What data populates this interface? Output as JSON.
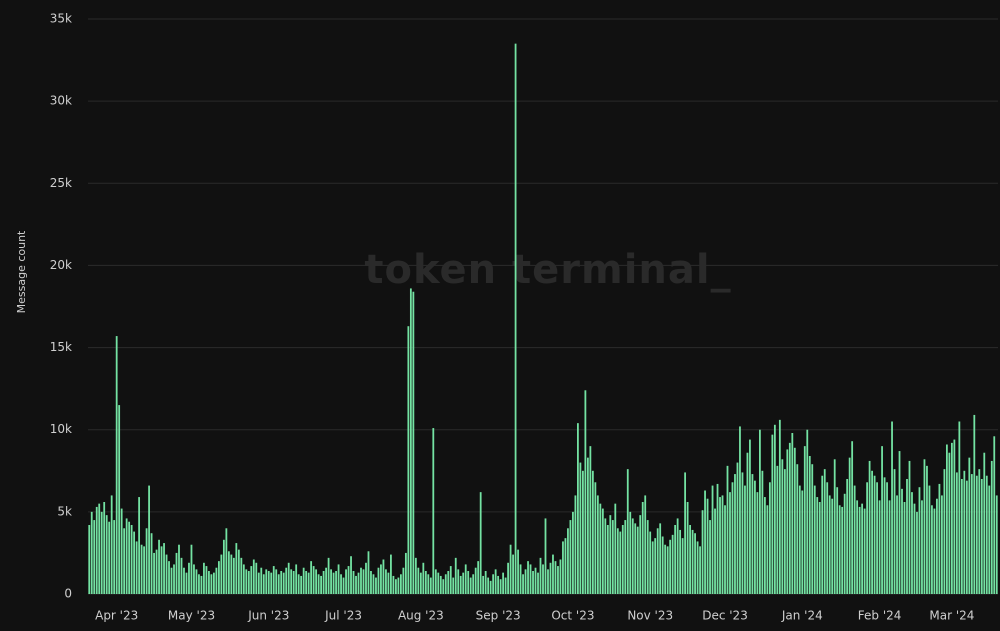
{
  "chart_data": {
    "type": "bar",
    "y_label": "Message count",
    "watermark": "token terminal_",
    "color": "#74e3a3",
    "grid": true,
    "ylim": [
      0,
      35000
    ],
    "yticks": [
      0,
      {
        "value": 5000,
        "label": "5k"
      },
      {
        "value": 10000,
        "label": "10k"
      },
      {
        "value": 15000,
        "label": "15k"
      },
      {
        "value": 20000,
        "label": "20k"
      },
      {
        "value": 25000,
        "label": "25k"
      },
      {
        "value": 30000,
        "label": "30k"
      },
      {
        "value": 35000,
        "label": "35k"
      }
    ],
    "categories": [
      null,
      null,
      null,
      null,
      null,
      null,
      null,
      "Apr '23",
      null,
      null,
      null,
      null,
      null,
      null,
      null,
      null,
      null,
      null,
      null,
      null,
      null,
      null,
      null,
      null,
      null,
      null,
      null,
      null,
      null,
      null,
      null,
      null,
      null,
      null,
      null,
      null,
      null,
      "May '23",
      null,
      null,
      null,
      null,
      null,
      null,
      null,
      null,
      null,
      null,
      null,
      null,
      null,
      null,
      null,
      null,
      null,
      null,
      null,
      null,
      null,
      null,
      null,
      null,
      null,
      null,
      null,
      null,
      null,
      null,
      "Jun '23",
      null,
      null,
      null,
      null,
      null,
      null,
      null,
      null,
      null,
      null,
      null,
      null,
      null,
      null,
      null,
      null,
      null,
      null,
      null,
      null,
      null,
      null,
      null,
      null,
      null,
      null,
      null,
      null,
      null,
      "Jul '23",
      null,
      null,
      null,
      null,
      null,
      null,
      null,
      null,
      null,
      null,
      null,
      null,
      null,
      null,
      null,
      null,
      null,
      null,
      null,
      null,
      null,
      null,
      null,
      null,
      null,
      null,
      null,
      null,
      null,
      null,
      "Aug '23",
      null,
      null,
      null,
      null,
      null,
      null,
      null,
      null,
      null,
      null,
      null,
      null,
      null,
      null,
      null,
      null,
      null,
      null,
      null,
      null,
      null,
      null,
      null,
      null,
      null,
      null,
      null,
      null,
      null,
      null,
      "Sep '23",
      null,
      null,
      null,
      null,
      null,
      null,
      null,
      null,
      null,
      null,
      null,
      null,
      null,
      null,
      null,
      null,
      null,
      null,
      null,
      null,
      null,
      null,
      null,
      null,
      null,
      null,
      null,
      null,
      null,
      "Oct '23",
      null,
      null,
      null,
      null,
      null,
      null,
      null,
      null,
      null,
      null,
      null,
      null,
      null,
      null,
      null,
      null,
      null,
      null,
      null,
      null,
      null,
      null,
      null,
      null,
      null,
      null,
      null,
      null,
      null,
      null,
      "Nov '23",
      null,
      null,
      null,
      null,
      null,
      null,
      null,
      null,
      null,
      null,
      null,
      null,
      null,
      null,
      null,
      null,
      null,
      null,
      null,
      null,
      null,
      null,
      null,
      null,
      null,
      null,
      null,
      null,
      null,
      "Dec '23",
      null,
      null,
      null,
      null,
      null,
      null,
      null,
      null,
      null,
      null,
      null,
      null,
      null,
      null,
      null,
      null,
      null,
      null,
      null,
      null,
      null,
      null,
      null,
      null,
      null,
      null,
      null,
      null,
      null,
      null,
      "Jan '24",
      null,
      null,
      null,
      null,
      null,
      null,
      null,
      null,
      null,
      null,
      null,
      null,
      null,
      null,
      null,
      null,
      null,
      null,
      null,
      null,
      null,
      null,
      null,
      null,
      null,
      null,
      null,
      null,
      null,
      null,
      "Feb '24",
      null,
      null,
      null,
      null,
      null,
      null,
      null,
      null,
      null,
      null,
      null,
      null,
      null,
      null,
      null,
      null,
      null,
      null,
      null,
      null,
      null,
      null,
      null,
      null,
      null,
      null,
      null,
      null,
      "Mar '24",
      null,
      null,
      null,
      null,
      null,
      null,
      null,
      null,
      null,
      null,
      null,
      null,
      null,
      null,
      null,
      null,
      null,
      null,
      null,
      null,
      null,
      null
    ],
    "values": [
      4200,
      5000,
      4500,
      5300,
      5500,
      5000,
      5600,
      4800,
      4400,
      6000,
      4500,
      15700,
      11500,
      5200,
      4000,
      4600,
      4400,
      4200,
      3800,
      3200,
      5900,
      3000,
      2900,
      4000,
      6600,
      3700,
      2500,
      2700,
      3300,
      2900,
      3100,
      2400,
      2000,
      1600,
      1800,
      2500,
      3000,
      2200,
      1600,
      1300,
      1900,
      3000,
      1800,
      1500,
      1200,
      1100,
      1900,
      1700,
      1400,
      1200,
      1300,
      1600,
      2000,
      2400,
      3300,
      4000,
      2600,
      2400,
      2200,
      3100,
      2700,
      2200,
      1800,
      1500,
      1400,
      1700,
      2100,
      1900,
      1300,
      1600,
      1200,
      1500,
      1400,
      1300,
      1700,
      1500,
      1200,
      1400,
      1300,
      1600,
      1900,
      1500,
      1400,
      1800,
      1200,
      1100,
      1600,
      1400,
      1300,
      2000,
      1700,
      1500,
      1200,
      1100,
      1400,
      1600,
      2200,
      1500,
      1300,
      1400,
      1800,
      1200,
      1000,
      1500,
      1700,
      2300,
      1400,
      1100,
      1300,
      1600,
      1500,
      1900,
      2600,
      1400,
      1200,
      1000,
      1600,
      1800,
      2100,
      1500,
      1300,
      2400,
      1100,
      900,
      1000,
      1200,
      1600,
      2500,
      16300,
      18600,
      18400,
      2200,
      1600,
      1300,
      1900,
      1400,
      1200,
      1000,
      10100,
      1500,
      1300,
      1100,
      900,
      1200,
      1400,
      1700,
      1000,
      2200,
      1500,
      1100,
      1300,
      1800,
      1400,
      1000,
      1200,
      1600,
      2000,
      6200,
      1100,
      1400,
      1000,
      800,
      1200,
      1500,
      1100,
      900,
      1300,
      1000,
      1900,
      3000,
      2400,
      33500,
      2700,
      1800,
      1200,
      1500,
      2000,
      1800,
      1400,
      1600,
      1300,
      2200,
      1800,
      4600,
      1500,
      1900,
      2400,
      2000,
      1700,
      2100,
      3200,
      3400,
      4000,
      4500,
      5000,
      6000,
      10400,
      8000,
      7500,
      12400,
      8300,
      9000,
      7500,
      6800,
      6000,
      5500,
      5200,
      4600,
      4200,
      4800,
      4500,
      5500,
      4000,
      3800,
      4200,
      4500,
      7600,
      5000,
      4600,
      4300,
      4100,
      4800,
      5600,
      6000,
      4500,
      3800,
      3200,
      3400,
      4000,
      4300,
      3500,
      3000,
      2900,
      3300,
      3600,
      4200,
      4600,
      3900,
      3400,
      7400,
      5600,
      4200,
      3900,
      3700,
      3200,
      2900,
      5100,
      6300,
      5800,
      4500,
      6600,
      5200,
      6700,
      5900,
      6000,
      5400,
      7800,
      6200,
      6800,
      7300,
      8000,
      10200,
      7400,
      6600,
      8600,
      9400,
      7300,
      6900,
      6200,
      10000,
      7500,
      5900,
      5400,
      6800,
      9700,
      10300,
      7800,
      10600,
      8200,
      7600,
      8800,
      9200,
      9800,
      8900,
      7900,
      6600,
      6300,
      9000,
      10000,
      8400,
      7900,
      6600,
      5900,
      5600,
      7200,
      7600,
      6800,
      6000,
      5800,
      8200,
      6500,
      5400,
      5300,
      6100,
      7000,
      8300,
      9300,
      6600,
      5700,
      5300,
      5500,
      5200,
      6800,
      8100,
      7500,
      7200,
      6800,
      5700,
      9000,
      7100,
      6800,
      5700,
      10500,
      7600,
      6000,
      8700,
      6400,
      5600,
      7000,
      8100,
      6200,
      5500,
      5000,
      6500,
      5700,
      8200,
      7800,
      6600,
      5400,
      5200,
      5800,
      6700,
      6000,
      7600,
      9100,
      8600,
      9200,
      9400,
      7400,
      10500,
      7000,
      7500,
      6900,
      8300,
      7300,
      10900,
      7200,
      7600,
      7000,
      8600,
      7200,
      6600,
      8100,
      9600,
      6000
    ]
  }
}
